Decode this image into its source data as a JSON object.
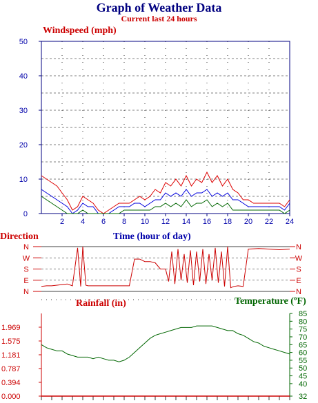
{
  "title": "Graph of Weather Data",
  "subtitle": "Current last 24 hours",
  "colors": {
    "wind_max": "#dd0000",
    "wind_avg": "#0000dd",
    "wind_min": "#006600",
    "rain": "#cc0000",
    "temperature": "#006600",
    "axis_blue": "#0000aa"
  },
  "chart_data": [
    {
      "type": "line",
      "title": "Windspeed (mph)",
      "xlabel": "Time (hour of day)",
      "ylabel": "",
      "xlim": [
        0,
        24
      ],
      "ylim": [
        0,
        50
      ],
      "grid": true,
      "x_ticks": [
        "2",
        "4",
        "6",
        "8",
        "10",
        "12",
        "14",
        "16",
        "18",
        "20",
        "22",
        "24"
      ],
      "y_ticks": [
        "0",
        "10",
        "20",
        "30",
        "40",
        "50"
      ],
      "x": [
        0,
        0.5,
        1,
        1.5,
        2,
        2.5,
        3,
        3.5,
        4,
        4.5,
        5,
        5.5,
        6,
        6.5,
        7,
        7.5,
        8,
        8.5,
        9,
        9.5,
        10,
        10.5,
        11,
        11.5,
        12,
        12.5,
        13,
        13.5,
        14,
        14.5,
        15,
        15.5,
        16,
        16.5,
        17,
        17.5,
        18,
        18.5,
        19,
        19.5,
        20,
        20.5,
        21,
        21.5,
        22,
        22.5,
        23,
        23.5,
        24
      ],
      "series": [
        {
          "values": [
            11,
            10,
            9,
            8,
            6,
            4,
            1,
            2,
            5,
            4,
            3,
            1,
            0,
            1,
            2,
            3,
            3,
            3,
            4,
            5,
            4,
            5,
            7,
            6,
            9,
            8,
            10,
            8,
            11,
            8,
            10,
            9,
            12,
            9,
            11,
            8,
            10,
            7,
            6,
            4,
            4,
            3,
            3,
            3,
            3,
            3,
            3,
            2,
            4
          ]
        },
        {
          "values": [
            7,
            6,
            5,
            4,
            3,
            2,
            0,
            1,
            3,
            2,
            2,
            0,
            0,
            0,
            1,
            2,
            2,
            2,
            3,
            3,
            2,
            3,
            4,
            4,
            6,
            5,
            6,
            5,
            7,
            5,
            6,
            6,
            7,
            5,
            6,
            5,
            6,
            4,
            4,
            3,
            2,
            2,
            2,
            2,
            2,
            2,
            2,
            1,
            3
          ]
        },
        {
          "values": [
            5,
            4,
            3,
            2,
            1,
            0,
            0,
            0,
            1,
            0,
            0,
            0,
            0,
            0,
            0,
            0,
            1,
            1,
            1,
            1,
            1,
            1,
            2,
            2,
            3,
            2,
            3,
            2,
            4,
            2,
            3,
            3,
            4,
            2,
            3,
            2,
            3,
            1,
            1,
            1,
            1,
            1,
            1,
            1,
            1,
            1,
            1,
            0,
            1
          ]
        }
      ]
    },
    {
      "type": "line",
      "title": "Direction",
      "ylabel": "Direction",
      "categories": [
        "N",
        "E",
        "S",
        "W",
        "N"
      ],
      "y_ticks_left": [
        "N",
        "W",
        "S",
        "E",
        "N"
      ],
      "y_ticks_right": [
        "N",
        "W",
        "S",
        "E",
        "N"
      ],
      "ylim": [
        0,
        360
      ],
      "grid": true,
      "x": [
        0,
        0.5,
        1,
        1.5,
        2,
        2.5,
        3,
        3.5,
        3.8,
        4,
        4.3,
        4.5,
        5,
        5.5,
        6,
        6.5,
        7,
        7.5,
        8,
        8.5,
        9,
        9.5,
        10,
        10.5,
        11,
        11.5,
        12,
        12.3,
        12.6,
        12.9,
        13.2,
        13.5,
        13.8,
        14.1,
        14.4,
        14.7,
        15,
        15.3,
        15.6,
        15.9,
        16.2,
        16.5,
        16.8,
        17.1,
        17.4,
        17.7,
        18,
        18.3,
        18.6,
        19,
        19.5,
        20,
        21,
        22,
        23,
        24
      ],
      "values": [
        40,
        45,
        45,
        50,
        55,
        60,
        45,
        350,
        40,
        360,
        50,
        45,
        45,
        45,
        45,
        45,
        45,
        45,
        45,
        45,
        260,
        260,
        240,
        240,
        230,
        180,
        180,
        80,
        320,
        60,
        340,
        90,
        300,
        70,
        330,
        50,
        320,
        80,
        340,
        60,
        300,
        90,
        350,
        70,
        320,
        40,
        360,
        30,
        40,
        45,
        40,
        340,
        345,
        340,
        335,
        340
      ]
    },
    {
      "type": "line",
      "title": "Rainfall (in)",
      "ylabel": "Rainfall (in)",
      "ylim": [
        0,
        2.362
      ],
      "y_ticks": [
        "0.000",
        "0.394",
        "0.787",
        "1.181",
        "1.575",
        "1.969"
      ],
      "x": [
        0,
        24
      ],
      "values": [
        0,
        0
      ]
    },
    {
      "type": "line",
      "title": "Temperature (ºF)",
      "ylabel": "Temperature (ºF)",
      "ylim": [
        32,
        85
      ],
      "y_ticks": [
        "32",
        "40",
        "45",
        "50",
        "55",
        "60",
        "65",
        "70",
        "75",
        "80",
        "85"
      ],
      "x": [
        0,
        0.5,
        1,
        1.5,
        2,
        2.5,
        3,
        3.5,
        4,
        4.5,
        5,
        5.5,
        6,
        6.5,
        7,
        7.5,
        8,
        8.5,
        9,
        9.5,
        10,
        10.5,
        11,
        11.5,
        12,
        12.5,
        13,
        13.5,
        14,
        14.5,
        15,
        15.5,
        16,
        16.5,
        17,
        17.5,
        18,
        18.5,
        19,
        19.5,
        20,
        20.5,
        21,
        21.5,
        22,
        22.5,
        23,
        23.5,
        24
      ],
      "values": [
        65,
        63,
        62,
        61,
        61,
        59,
        58,
        57,
        57,
        57,
        56,
        57,
        56,
        55,
        55,
        54,
        55,
        57,
        60,
        63,
        66,
        69,
        71,
        72,
        73,
        74,
        75,
        76,
        76,
        76,
        77,
        77,
        77,
        77,
        76,
        75,
        74,
        74,
        72,
        71,
        69,
        67,
        66,
        64,
        63,
        62,
        61,
        60,
        59
      ]
    }
  ]
}
